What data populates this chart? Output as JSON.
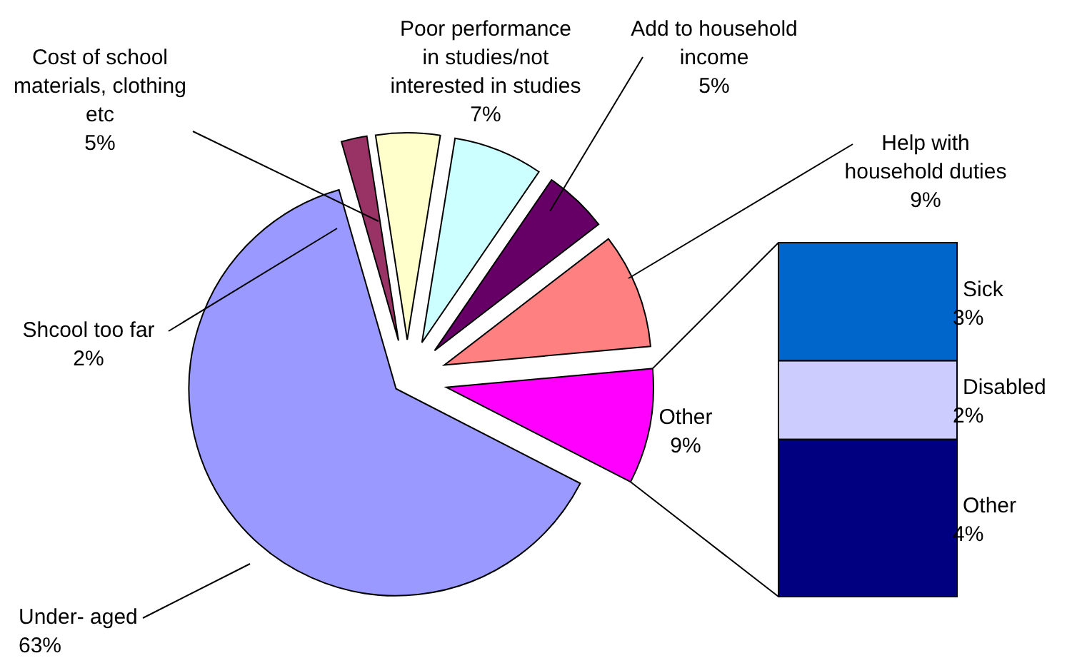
{
  "chart_data": [
    {
      "type": "pie",
      "categories": [
        "Under- aged",
        "Shcool too far",
        "Cost of school materials, clothing etc",
        "Poor performance in studies/not interested in studies",
        "Add to household income",
        "Help with household duties",
        "Other"
      ],
      "values": [
        63,
        2,
        5,
        7,
        5,
        9,
        9
      ],
      "colors": [
        "#9999ff",
        "#993366",
        "#ffffcc",
        "#ccffff",
        "#660066",
        "#ff8080",
        "#ff00ff"
      ],
      "value_labels": [
        "63%",
        "2%",
        "5%",
        "7%",
        "5%",
        "9%",
        "9%"
      ]
    },
    {
      "type": "bar",
      "stacked": true,
      "categories": [
        null
      ],
      "series": [
        {
          "name": "Other",
          "color": "#000080",
          "values": [
            4
          ],
          "value_labels": [
            "4%"
          ]
        },
        {
          "name": "Disabled",
          "color": "#ccccff",
          "values": [
            2
          ],
          "value_labels": [
            "2%"
          ]
        },
        {
          "name": "Sick",
          "color": "#0066cc",
          "values": [
            3
          ],
          "value_labels": [
            "3%"
          ]
        }
      ]
    }
  ]
}
